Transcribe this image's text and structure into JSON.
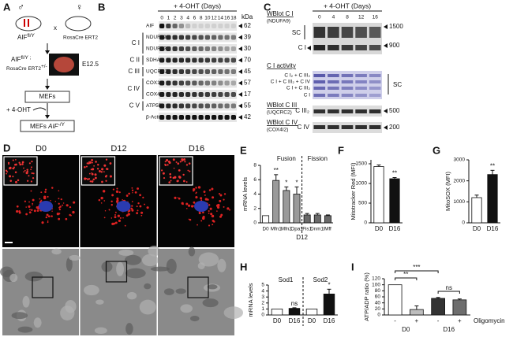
{
  "figure": {
    "a": {
      "letter": "A",
      "male": "♂",
      "female": "♀",
      "cross": "x",
      "father": {
        "gene": "AIF",
        "sup": "fl/Y"
      },
      "mother": "RosaCre ERT2",
      "embryo": {
        "gene": "AIF",
        "sup": "fl/Y ;",
        "cre": "RosaCre ERT2",
        "cre_sup": "+/-"
      },
      "stage": "E12.5",
      "cells": "MEFs",
      "treatment": "+ 4-OHT",
      "result": {
        "cells": "MEFs",
        "gene": "AIF",
        "sup": "-/Y"
      }
    },
    "b": {
      "letter": "B",
      "header": "+ 4-OHT (Days)",
      "days": [
        0,
        1,
        2,
        3,
        4,
        6,
        8,
        10,
        12,
        14,
        16,
        18
      ],
      "unit": "kDa",
      "rows": [
        {
          "protein": "AIF",
          "kda": 62
        },
        {
          "complex": "C I",
          "protein": "NDUFA9",
          "kda": 39
        },
        {
          "protein": "NDUFS3",
          "kda": 30
        },
        {
          "complex": "C II",
          "protein": "SDHA",
          "kda": 70
        },
        {
          "complex": "C III",
          "protein": "UQCRC2",
          "kda": 45
        },
        {
          "complex": "C IV",
          "protein": "COX1",
          "kda": 57
        },
        {
          "protein": "COX4I2",
          "kda": 17
        },
        {
          "complex": "C V",
          "protein": "ATP5B",
          "kda": 55
        },
        {
          "protein": "β-Actin",
          "kda": 42
        }
      ]
    },
    "c": {
      "letter": "C",
      "header": "+ 4-OHT (Days)",
      "days": [
        0,
        4,
        8,
        12,
        16
      ],
      "ci_blot": {
        "title": "WBlot C I",
        "antibody": "(NDUFA9)",
        "sc": "SC",
        "ci": "C I",
        "markers": [
          1500,
          900
        ]
      },
      "activity": {
        "title": "C I activity",
        "bands": [
          "C I₂ + C III₂",
          "C I + C III₂ + C IV",
          "C I + C III₂",
          "C I"
        ],
        "sc": "SC"
      },
      "ciii_blot": {
        "title": "WBlot C III",
        "antibody": "(UQCRC2)",
        "band": "C III₂",
        "marker": 500
      },
      "civ_blot": {
        "title": "WBlot C IV",
        "antibody": "(COX4I2)",
        "band": "C IV",
        "marker": 200
      }
    },
    "d": {
      "letter": "D",
      "columns": [
        "D0",
        "D12",
        "D16"
      ]
    }
  },
  "chart_data": [
    {
      "type": "bar",
      "letter": "E",
      "y_label": "mRNA levels",
      "ylim": [
        0,
        8
      ],
      "yticks": [
        0,
        2,
        4,
        6,
        8
      ],
      "categories": [
        "D0",
        "Mfn1",
        "Mfn2",
        "Opa1",
        "Fis1",
        "Dnm1l",
        "Mff"
      ],
      "values": [
        1,
        5.9,
        4.5,
        4.0,
        1.1,
        1.1,
        1.0
      ],
      "errors": [
        null,
        0.8,
        0.5,
        1.0,
        0.2,
        0.2,
        0.1
      ],
      "colors": [
        "#ffffff",
        "#9a9a9a",
        "#9a9a9a",
        "#9a9a9a",
        "#6a6a6a",
        "#6a6a6a",
        "#6a6a6a"
      ],
      "significance": [
        null,
        "**",
        "*",
        "*",
        null,
        null,
        null
      ],
      "groups": [
        "Fusion",
        "Fission"
      ],
      "x_label": "D12"
    },
    {
      "type": "bar",
      "letter": "F",
      "y_label": "Mitotracker Red (MFI)",
      "ylim": [
        0,
        1600
      ],
      "yticks": [
        0,
        500,
        1000,
        1500
      ],
      "categories": [
        "D0",
        "D16"
      ],
      "values": [
        1430,
        1120
      ],
      "errors": [
        40,
        30
      ],
      "colors": [
        "#ffffff",
        "#111111"
      ],
      "significance": [
        null,
        "**"
      ]
    },
    {
      "type": "bar",
      "letter": "G",
      "y_label": "MitoSOX (MFI)",
      "ylim": [
        0,
        3000
      ],
      "yticks": [
        0,
        1000,
        2000,
        3000
      ],
      "categories": [
        "D0",
        "D16"
      ],
      "values": [
        1200,
        2300
      ],
      "errors": [
        120,
        200
      ],
      "colors": [
        "#ffffff",
        "#111111"
      ],
      "significance": [
        null,
        "**"
      ]
    },
    {
      "type": "bar",
      "letter": "H",
      "y_label": "mRNA levels",
      "ylim": [
        0,
        5
      ],
      "yticks": [
        0,
        1,
        2,
        3,
        4,
        5
      ],
      "categories": [
        "D0",
        "D16",
        "D0",
        "D16"
      ],
      "values": [
        1,
        1.1,
        1,
        3.5
      ],
      "errors": [
        null,
        0.1,
        null,
        0.8
      ],
      "colors": [
        "#ffffff",
        "#111111",
        "#ffffff",
        "#111111"
      ],
      "significance": [
        null,
        "ns",
        null,
        "*"
      ],
      "groups": [
        "Sod1",
        "Sod2"
      ]
    },
    {
      "type": "bar",
      "letter": "I",
      "y_label": "ATP/ADP ratio (%)",
      "ylim": [
        0,
        120
      ],
      "yticks": [
        0,
        20,
        40,
        60,
        80,
        100,
        120
      ],
      "categories": [
        "-",
        "+",
        "-",
        "+"
      ],
      "values": [
        100,
        18,
        55,
        50
      ],
      "errors": [
        null,
        12,
        3,
        3
      ],
      "colors": [
        "#ffffff",
        "#bdbdbd",
        "#333333",
        "#6d6d6d"
      ],
      "groups": [
        "D0",
        "D16"
      ],
      "x_label": "Oligomycin",
      "comparisons": [
        "**",
        "***",
        "ns"
      ]
    }
  ]
}
